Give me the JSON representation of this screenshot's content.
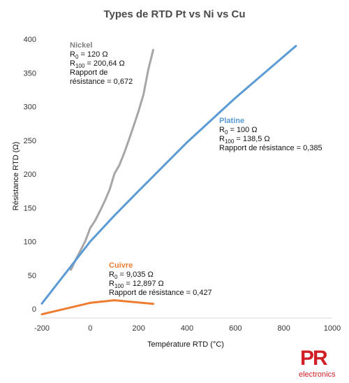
{
  "chart_data": {
    "type": "line",
    "title": "Types de RTD Pt vs Ni vs Cu",
    "xlabel": "Température RTD (°C)",
    "ylabel": "Résistance RTD  (Ω)",
    "xlim": [
      -200,
      1000
    ],
    "ylim": [
      0,
      400
    ],
    "xticks": [
      "-200",
      "0",
      "200",
      "400",
      "600",
      "800",
      "1000"
    ],
    "yticks": [
      "0",
      "50",
      "100",
      "150",
      "200",
      "250",
      "300",
      "350",
      "400"
    ],
    "grid": false,
    "series": [
      {
        "name": "Nickel",
        "color": "#a6a6a6",
        "x": [
          -80,
          -60,
          -40,
          -20,
          0,
          20,
          40,
          60,
          80,
          100,
          120,
          140,
          160,
          180,
          200,
          220,
          240,
          260
        ],
        "y": [
          58,
          73,
          87,
          101,
          120,
          131,
          145,
          160,
          177,
          200.64,
          213,
          231,
          251,
          272,
          294,
          318,
          355,
          384
        ]
      },
      {
        "name": "Platine",
        "color": "#5b9bd5",
        "x": [
          -200,
          0,
          100,
          200,
          400,
          600,
          850
        ],
        "y": [
          8,
          100,
          138.5,
          175,
          247,
          313,
          390
        ]
      },
      {
        "name": "Cuivre",
        "color": "#ed7d31",
        "x": [
          -200,
          0,
          100,
          260
        ],
        "y": [
          -8,
          9.035,
          12.897,
          7.5
        ]
      }
    ],
    "annotations": [
      {
        "series": "Nickel",
        "title": "Nickel",
        "r0": "= 120 Ω",
        "r100": "= 200,64 Ω",
        "ratio_lines": [
          "Rapport de",
          "résistance = 0,672"
        ]
      },
      {
        "series": "Platine",
        "title": "Platine",
        "r0": "= 100 Ω",
        "r100": "= 138,5 Ω",
        "ratio_lines": [
          "Rapport de résistance = 0,385"
        ]
      },
      {
        "series": "Cuivre",
        "title": "Cuivre",
        "r0": "= 9,035 Ω",
        "r100": "= 12,897 Ω",
        "ratio_lines": [
          "Rapport de résistance = 0,427"
        ]
      }
    ],
    "r_label": "R",
    "sub0": "0",
    "sub100": "100"
  },
  "logo": {
    "mark": "PR",
    "text": "electronics",
    "color": "#d11f26"
  }
}
